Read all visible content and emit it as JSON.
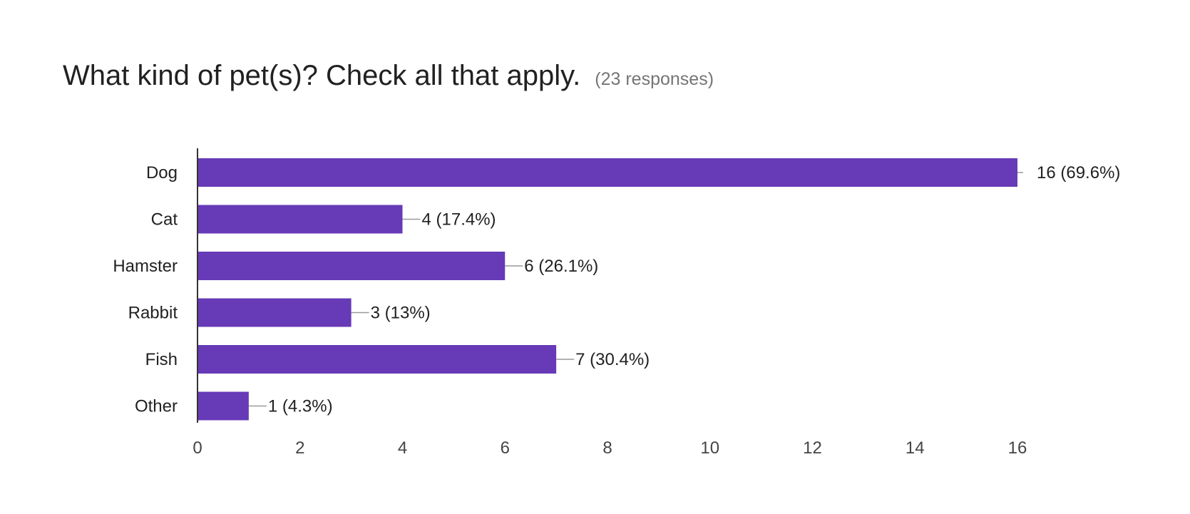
{
  "header": {
    "title": "What kind of pet(s)? Check all that apply.",
    "responses": "(23 responses)"
  },
  "colors": {
    "bar": "#673ab7",
    "axis": "#333333",
    "leader": "#999999",
    "text": "#212121",
    "tick": "#444444"
  },
  "chart_data": {
    "type": "bar",
    "orientation": "horizontal",
    "title": "What kind of pet(s)? Check all that apply.",
    "subtitle": "(23 responses)",
    "categories": [
      "Dog",
      "Cat",
      "Hamster",
      "Rabbit",
      "Fish",
      "Other"
    ],
    "values": [
      16,
      4,
      6,
      3,
      7,
      1
    ],
    "labels": [
      "16 (69.6%)",
      "4 (17.4%)",
      "6 (26.1%)",
      "3 (13%)",
      "7 (30.4%)",
      "1 (4.3%)"
    ],
    "xlim": [
      0,
      16
    ],
    "xticks": [
      0,
      2,
      4,
      6,
      8,
      10,
      12,
      14,
      16
    ],
    "grid": false,
    "legend": "none"
  }
}
